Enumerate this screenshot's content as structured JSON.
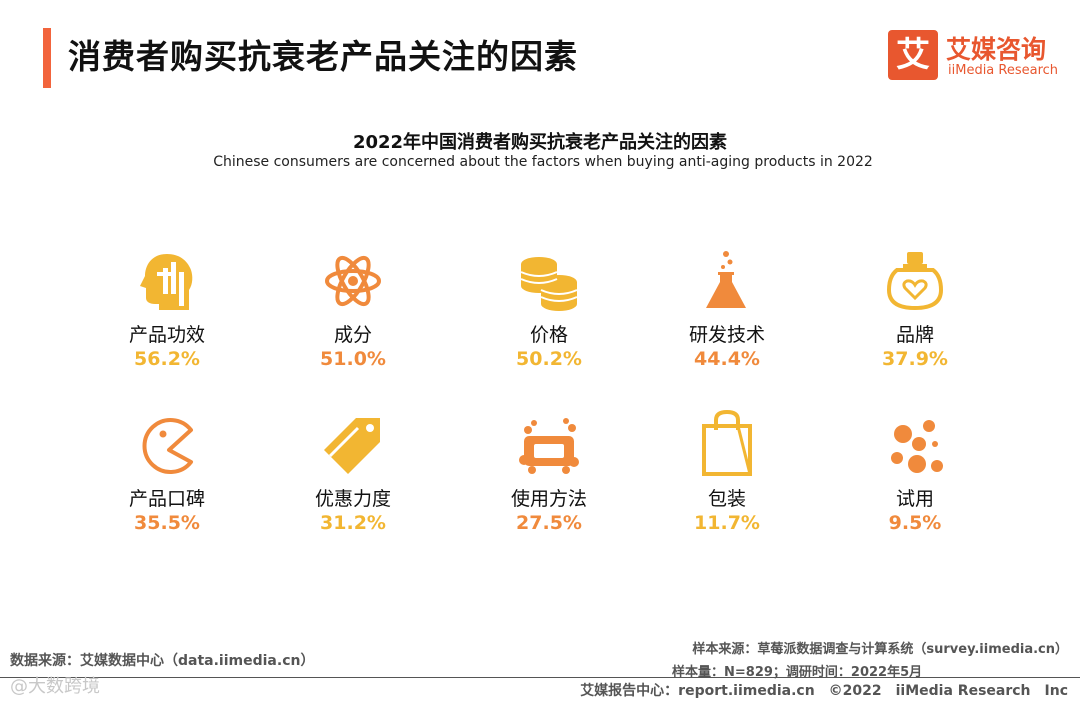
{
  "header": {
    "title": "消费者购买抗衰老产品关注的因素",
    "logo_cn": "艾媒咨询",
    "logo_en": "iiMedia Research",
    "logo_mark": "艾"
  },
  "chart_data": {
    "type": "table",
    "title": "2022年中国消费者购买抗衰老产品关注的因素",
    "subtitle": "Chinese consumers are concerned about the factors when buying anti-aging products in 2022",
    "categories": [
      "产品功效",
      "成分",
      "价格",
      "研发技术",
      "品牌",
      "产品口碑",
      "优惠力度",
      "使用方法",
      "包装",
      "试用"
    ],
    "values": [
      56.2,
      51.0,
      50.2,
      44.4,
      37.9,
      35.5,
      31.2,
      27.5,
      11.7,
      9.5
    ],
    "value_labels": [
      "56.2%",
      "51.0%",
      "50.2%",
      "44.4%",
      "37.9%",
      "35.5%",
      "31.2%",
      "27.5%",
      "11.7%",
      "9.5%"
    ],
    "value_colors": [
      "#f2b632",
      "#f08a3c",
      "#f2b632",
      "#f08a3c",
      "#f2b632",
      "#f08a3c",
      "#f2b632",
      "#f08a3c",
      "#f2b632",
      "#f08a3c"
    ],
    "icons": [
      "head-gears-icon",
      "atom-icon",
      "coins-icon",
      "flask-icon",
      "perfume-icon",
      "pacman-icon",
      "price-tag-icon",
      "soap-icon",
      "shopping-bag-icon",
      "bubbles-icon"
    ],
    "layout": "grid-2x5"
  },
  "colors": {
    "accent": "#f2643c",
    "orange": "#f08a3c",
    "yellow": "#f2b632"
  },
  "footer": {
    "source_label": "数据来源：",
    "source_text": "艾媒数据中心（data.iimedia.cn）",
    "sample_source": "样本来源：草莓派数据调查与计算系统（survey.iimedia.cn）",
    "sample_size": "样本量：N=829；调研时间：2022年5月",
    "report_center": "艾媒报告中心：report.iimedia.cn　©2022　iiMedia Research　Inc",
    "watermark": "@大数跨境"
  }
}
